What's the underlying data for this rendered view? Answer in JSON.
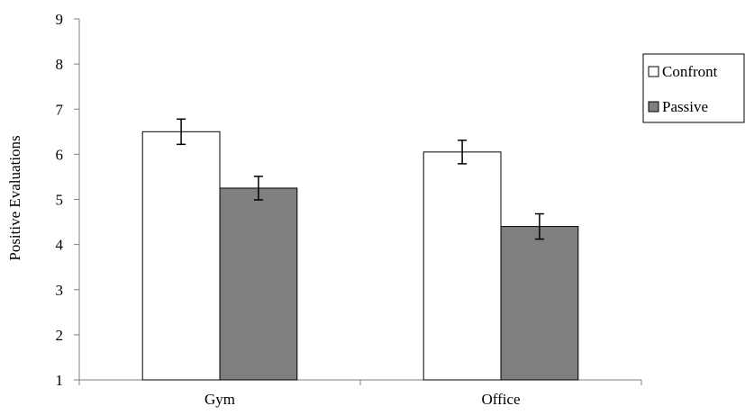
{
  "chart_data": {
    "type": "bar",
    "title": "",
    "xlabel": "",
    "ylabel": "Positive Evaluations",
    "ylim": [
      1,
      9
    ],
    "yticks": [
      1,
      2,
      3,
      4,
      5,
      6,
      7,
      8,
      9
    ],
    "categories": [
      "Gym",
      "Office"
    ],
    "series": [
      {
        "name": "Confront",
        "values": [
          6.5,
          6.05
        ],
        "errors": [
          0.28,
          0.26
        ],
        "color": "#ffffff"
      },
      {
        "name": "Passive",
        "values": [
          5.25,
          4.4
        ],
        "errors": [
          0.26,
          0.28
        ],
        "color": "#7f7f7f"
      }
    ],
    "grid": false,
    "error_bars": true,
    "legend_position": "right"
  }
}
